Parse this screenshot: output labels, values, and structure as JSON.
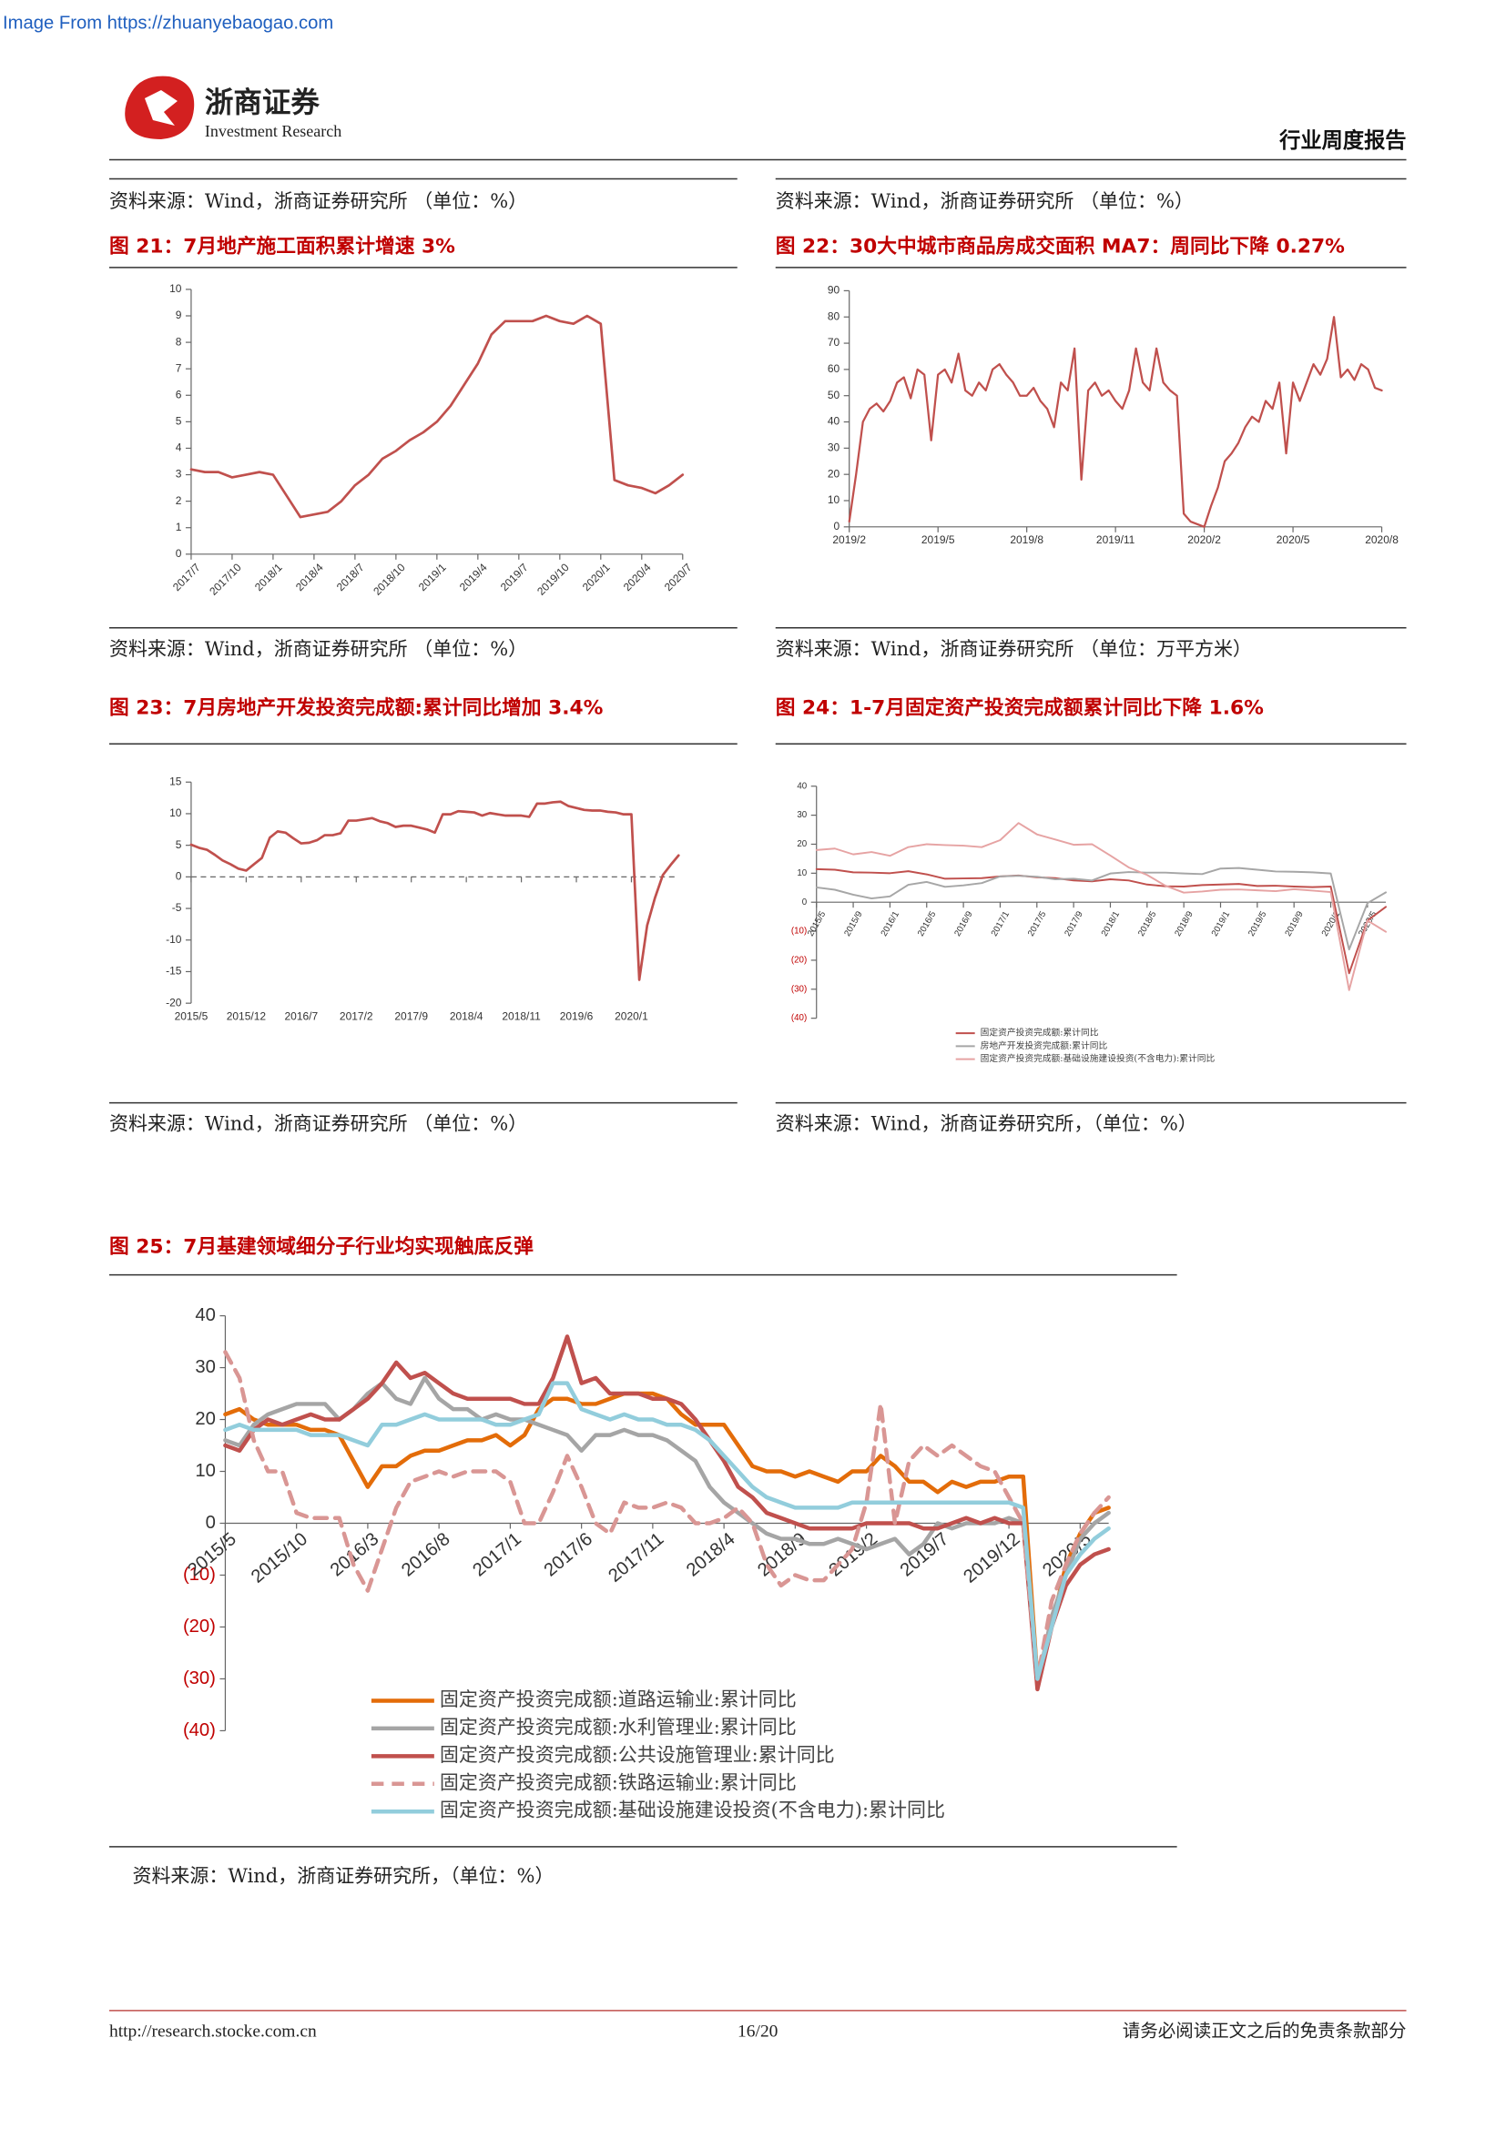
{
  "watermark": "Image From https://zhuanyebaogao.com",
  "header": {
    "company": "浙商证券",
    "company_en": "Investment Research",
    "report_type": "行业周度报告"
  },
  "preceding_sources": [
    "资料来源：Wind，浙商证券研究所 （单位：%）",
    "资料来源：Wind，浙商证券研究所 （单位：%）"
  ],
  "chart_data": [
    {
      "type": "line",
      "title": "图 21：7月地产施工面积累计增速 3%",
      "source": "资料来源：Wind，浙商证券研究所 （单位：%）",
      "categories": [
        "2017/7",
        null,
        null,
        "2017/10",
        null,
        null,
        "2018/1",
        null,
        null,
        "2018/4",
        null,
        null,
        "2018/7",
        null,
        null,
        "2018/10",
        null,
        null,
        "2019/1",
        null,
        null,
        "2019/4",
        null,
        null,
        "2019/7",
        null,
        null,
        "2019/10",
        null,
        null,
        "2020/1",
        null,
        null,
        "2020/4",
        null,
        null,
        "2020/7"
      ],
      "values": [
        3.2,
        3.1,
        3.1,
        2.9,
        3.0,
        3.1,
        3.0,
        2.2,
        1.4,
        1.5,
        1.6,
        2.0,
        2.6,
        3.0,
        3.6,
        3.9,
        4.3,
        4.6,
        5.0,
        5.6,
        6.4,
        7.2,
        8.3,
        8.8,
        8.8,
        8.8,
        9.0,
        8.8,
        8.7,
        9.0,
        8.7,
        2.8,
        2.6,
        2.5,
        2.3,
        2.6,
        3.0
      ],
      "color": "#c0504d",
      "ylim": [
        0,
        10
      ],
      "yticks": [
        0,
        1,
        2,
        3,
        4,
        5,
        6,
        7,
        8,
        9,
        10
      ]
    },
    {
      "type": "line",
      "title": "图 22：30大中城市商品房成交面积 MA7：周同比下降 0.27%",
      "source": "资料来源：Wind，浙商证券研究所 （单位：万平方米）",
      "categories": [
        "2019/2",
        null,
        null,
        null,
        null,
        null,
        null,
        null,
        null,
        null,
        null,
        null,
        null,
        "2019/5",
        null,
        null,
        null,
        null,
        null,
        null,
        null,
        null,
        null,
        null,
        null,
        null,
        "2019/8",
        null,
        null,
        null,
        null,
        null,
        null,
        null,
        null,
        null,
        null,
        null,
        null,
        "2019/11",
        null,
        null,
        null,
        null,
        null,
        null,
        null,
        null,
        null,
        null,
        null,
        null,
        "2020/2",
        null,
        null,
        null,
        null,
        null,
        null,
        null,
        null,
        null,
        null,
        null,
        null,
        "2020/5",
        null,
        null,
        null,
        null,
        null,
        null,
        null,
        null,
        null,
        null,
        null,
        null,
        "2020/8"
      ],
      "values": [
        2,
        20,
        40,
        45,
        47,
        44,
        48,
        55,
        57,
        49,
        60,
        58,
        33,
        58,
        60,
        55,
        66,
        52,
        50,
        55,
        52,
        60,
        62,
        58,
        55,
        50,
        50,
        53,
        48,
        45,
        38,
        55,
        52,
        68,
        18,
        52,
        55,
        50,
        52,
        48,
        45,
        52,
        68,
        55,
        52,
        68,
        55,
        52,
        50,
        5,
        2,
        1,
        0,
        8,
        15,
        25,
        28,
        32,
        38,
        42,
        40,
        48,
        45,
        55,
        28,
        55,
        48,
        55,
        62,
        58,
        64,
        80,
        57,
        60,
        56,
        62,
        60,
        53,
        52
      ],
      "color": "#c0504d",
      "ylim": [
        0,
        90
      ],
      "yticks": [
        0,
        10,
        20,
        30,
        40,
        50,
        60,
        70,
        80,
        90
      ]
    },
    {
      "type": "line",
      "title": "图 23：7月房地产开发投资完成额:累计同比增加 3.4%",
      "source": "资料来源：Wind，浙商证券研究所 （单位：%）",
      "categories": [
        "2015/5",
        null,
        null,
        null,
        null,
        null,
        null,
        "2015/12",
        null,
        null,
        null,
        null,
        null,
        null,
        "2016/7",
        null,
        null,
        null,
        null,
        null,
        null,
        "2017/2",
        null,
        null,
        null,
        null,
        null,
        null,
        "2017/9",
        null,
        null,
        null,
        null,
        null,
        null,
        "2018/4",
        null,
        null,
        null,
        null,
        null,
        null,
        "2018/11",
        null,
        null,
        null,
        null,
        null,
        null,
        "2019/6",
        null,
        null,
        null,
        null,
        null,
        null,
        "2020/1",
        null,
        null,
        null,
        null,
        null,
        null
      ],
      "values": [
        5.1,
        4.6,
        4.3,
        3.5,
        2.6,
        2.0,
        1.3,
        1.0,
        2.0,
        3.0,
        6.2,
        7.2,
        7.0,
        6.1,
        5.3,
        5.4,
        5.8,
        6.6,
        6.6,
        6.9,
        8.9,
        8.9,
        9.1,
        9.3,
        8.8,
        8.5,
        7.9,
        8.1,
        8.1,
        7.8,
        7.5,
        7.0,
        9.9,
        9.9,
        10.4,
        10.3,
        10.2,
        9.7,
        10.1,
        9.9,
        9.7,
        9.7,
        9.7,
        9.5,
        11.6,
        11.6,
        11.8,
        11.9,
        11.2,
        10.9,
        10.6,
        10.5,
        10.5,
        10.3,
        10.2,
        9.9,
        9.9,
        -16.3,
        -7.7,
        -3.3,
        0.3,
        1.9,
        3.4
      ],
      "color": "#c0504d",
      "ylim": [
        -20,
        15
      ],
      "yticks": [
        -20,
        -15,
        -10,
        -5,
        0,
        5,
        10,
        15
      ],
      "zero_line_style": "dashed"
    },
    {
      "type": "line",
      "title": "图 24：1-7月固定资产投资完成额累计同比下降 1.6%",
      "source": "资料来源：Wind，浙商证券研究所，（单位：%）",
      "categories": [
        "2015/5",
        null,
        "2015/9",
        null,
        "2016/1",
        null,
        "2016/5",
        null,
        "2016/9",
        null,
        "2017/1",
        null,
        "2017/5",
        null,
        "2017/9",
        null,
        "2018/1",
        null,
        "2018/5",
        null,
        "2018/9",
        null,
        "2019/1",
        null,
        "2019/5",
        null,
        "2019/9",
        null,
        "2020/1",
        null,
        "2020/5",
        null
      ],
      "series": [
        {
          "name": "固定资产投资完成额:累计同比",
          "color": "#c0504d",
          "values": [
            11.4,
            11.2,
            10.3,
            10.2,
            10.0,
            10.7,
            9.6,
            8.1,
            8.2,
            8.3,
            8.9,
            9.2,
            8.6,
            8.3,
            7.5,
            7.2,
            7.9,
            7.5,
            6.1,
            5.5,
            5.4,
            5.9,
            6.1,
            6.3,
            5.6,
            5.7,
            5.4,
            5.2,
            5.4,
            -24.5,
            -6.3,
            -1.6
          ]
        },
        {
          "name": "房地产开发投资完成额:累计同比",
          "color": "#a6a6a6",
          "values": [
            5.1,
            4.3,
            2.6,
            1.3,
            2.0,
            6.0,
            7.0,
            5.3,
            5.8,
            6.6,
            8.9,
            9.1,
            8.8,
            7.9,
            8.1,
            7.5,
            9.9,
            10.4,
            10.2,
            10.2,
            9.9,
            9.7,
            11.6,
            11.8,
            11.2,
            10.6,
            10.5,
            10.3,
            9.9,
            -16.3,
            -0.3,
            3.4
          ]
        },
        {
          "name": "固定资产投资完成额:基础设施建设投资(不含电力):累计同比",
          "color": "#e6a3a3",
          "values": [
            18.0,
            18.5,
            16.5,
            17.3,
            16.0,
            19.0,
            20.0,
            19.7,
            19.5,
            19.0,
            21.4,
            27.3,
            23.4,
            21.6,
            19.8,
            20.0,
            16.1,
            12.0,
            9.4,
            5.7,
            3.3,
            3.7,
            4.3,
            4.4,
            4.1,
            3.8,
            4.5,
            4.0,
            3.5,
            -30.3,
            -6.3,
            -10.2
          ]
        }
      ],
      "ylim": [
        -40,
        40
      ],
      "yticks": [
        {
          "value": -40,
          "label": "(40)"
        },
        {
          "value": -30,
          "label": "(30)"
        },
        {
          "value": -20,
          "label": "(20)"
        },
        {
          "value": -10,
          "label": "(10)"
        },
        0,
        10,
        20,
        30,
        40
      ],
      "negative_tick_color": "#c00000"
    },
    {
      "type": "line",
      "title": "图 25：7月基建领域细分子行业均实现触底反弹",
      "source": "资料来源：Wind，浙商证券研究所，（单位：%）",
      "categories": [
        "2015/5",
        null,
        null,
        null,
        null,
        "2015/10",
        null,
        null,
        null,
        null,
        "2016/3",
        null,
        null,
        null,
        null,
        "2016/8",
        null,
        null,
        null,
        null,
        "2017/1",
        null,
        null,
        null,
        null,
        "2017/6",
        null,
        null,
        null,
        null,
        "2017/11",
        null,
        null,
        null,
        null,
        "2018/4",
        null,
        null,
        null,
        null,
        "2018/9",
        null,
        null,
        null,
        null,
        "2019/2",
        null,
        null,
        null,
        null,
        "2019/7",
        null,
        null,
        null,
        null,
        "2019/12",
        null,
        null,
        null,
        null,
        "2020/5",
        null,
        null
      ],
      "series": [
        {
          "name": "固定资产投资完成额:道路运输业:累计同比",
          "color": "#e36c09",
          "values": [
            21,
            22,
            20,
            19,
            19,
            19,
            18,
            18,
            17,
            12,
            7,
            11,
            11,
            13,
            14,
            14,
            15,
            16,
            16,
            17,
            15,
            17,
            22,
            24,
            24,
            23,
            23,
            24,
            25,
            25,
            25,
            24,
            21,
            19,
            19,
            19,
            15,
            11,
            10,
            10,
            9,
            10,
            9,
            8,
            10,
            10,
            13,
            11,
            8,
            8,
            6,
            8,
            7,
            8,
            8,
            9,
            9,
            -30,
            -20,
            -8,
            -2,
            2,
            3
          ]
        },
        {
          "name": "固定资产投资完成额:水利管理业:累计同比",
          "color": "#a5a5a5",
          "values": [
            16,
            15,
            19,
            21,
            22,
            23,
            23,
            23,
            20,
            22,
            25,
            27,
            24,
            23,
            28,
            24,
            22,
            22,
            20,
            21,
            20,
            20,
            19,
            18,
            17,
            14,
            17,
            17,
            18,
            17,
            17,
            16,
            14,
            12,
            7,
            4,
            2,
            0,
            -2,
            -3,
            -3,
            -4,
            -4,
            -3,
            -4,
            -5,
            -4,
            -3,
            -6,
            -4,
            0,
            -1,
            0,
            0,
            0,
            1,
            0,
            -31,
            -18,
            -10,
            -3,
            0,
            2
          ]
        },
        {
          "name": "固定资产投资完成额:公共设施管理业:累计同比",
          "color": "#c0504d",
          "values": [
            15,
            14,
            18,
            20,
            19,
            20,
            21,
            20,
            20,
            22,
            24,
            27,
            31,
            28,
            29,
            27,
            25,
            24,
            24,
            24,
            24,
            23,
            23,
            28,
            36,
            27,
            28,
            25,
            25,
            25,
            24,
            24,
            23,
            20,
            16,
            12,
            7,
            5,
            2,
            1,
            0,
            -1,
            -1,
            -1,
            -1,
            0,
            0,
            0,
            0,
            -1,
            -1,
            0,
            1,
            0,
            1,
            0,
            0,
            -32,
            -20,
            -12,
            -8,
            -6,
            -5
          ]
        },
        {
          "name": "固定资产投资完成额:铁路运输业:累计同比",
          "color": "#d99694",
          "line_style": "dashed",
          "values": [
            33,
            28,
            16,
            10,
            10,
            2,
            1,
            1,
            1,
            -8,
            -13,
            -5,
            3,
            8,
            9,
            10,
            9,
            10,
            10,
            10,
            8,
            0,
            0,
            6,
            13,
            7,
            0,
            -2,
            4,
            3,
            3,
            4,
            3,
            0,
            0,
            1,
            3,
            0,
            -8,
            -12,
            -10,
            -11,
            -11,
            -8,
            -5,
            4,
            23,
            0,
            12,
            15,
            13,
            15,
            13,
            11,
            10,
            5,
            0,
            -30,
            -15,
            -8,
            -2,
            2,
            5
          ]
        },
        {
          "name": "固定资产投资完成额:基础设施建设投资(不含电力):累计同比",
          "color": "#92cddc",
          "values": [
            18,
            19,
            18,
            18,
            18,
            18,
            17,
            17,
            17,
            16,
            15,
            19,
            19,
            20,
            21,
            20,
            20,
            20,
            20,
            19,
            19,
            20,
            21,
            27,
            27,
            22,
            21,
            20,
            21,
            20,
            20,
            19,
            19,
            18,
            16,
            13,
            10,
            7,
            5,
            4,
            3,
            3,
            3,
            3,
            4,
            4,
            4,
            4,
            4,
            4,
            4,
            4,
            4,
            4,
            4,
            4,
            3,
            -30,
            -20,
            -10,
            -6,
            -3,
            -1
          ]
        }
      ],
      "ylim": [
        -40,
        40
      ],
      "yticks": [
        {
          "value": -40,
          "label": "(40)"
        },
        {
          "value": -30,
          "label": "(30)"
        },
        {
          "value": -20,
          "label": "(20)"
        },
        {
          "value": -10,
          "label": "(10)"
        },
        0,
        10,
        20,
        30,
        40
      ],
      "negative_tick_color": "#c00000"
    }
  ],
  "footer": {
    "url": "http://research.stocke.com.cn",
    "page": "16/20",
    "disclaimer": "请务必阅读正文之后的免责条款部分"
  }
}
